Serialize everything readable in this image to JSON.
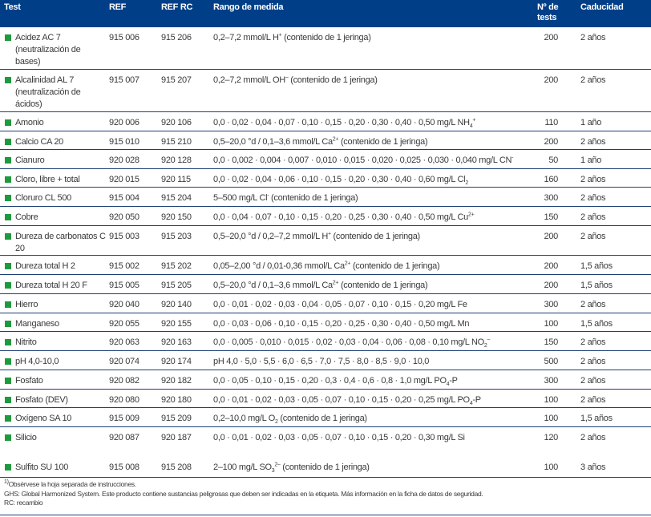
{
  "header": {
    "test": "Test",
    "ref": "REF",
    "ref_rc": "REF RC",
    "range": "Rango de medida",
    "n_tests": "Nº de tests",
    "expiry": "Caducidad"
  },
  "colors": {
    "header_bg": "#003f87",
    "marker": "#1e9a3e"
  },
  "rows": [
    {
      "test": "Acidez AC 7 (neutralización de bases)",
      "ref": "915 006",
      "ref_rc": "915 206",
      "range": [
        {
          "t": "0,2–7,2 mmol/L H"
        },
        {
          "sup": "+"
        },
        {
          "t": " (contenido de 1 jeringa)"
        }
      ],
      "n": "200",
      "exp": "2 años"
    },
    {
      "test": "Alcalinidad AL 7 (neutralización de ácidos)",
      "ref": "915 007",
      "ref_rc": "915 207",
      "range": [
        {
          "t": "0,2–7,2 mmol/L OH"
        },
        {
          "sup": "–"
        },
        {
          "t": " (contenido de 1 jeringa)"
        }
      ],
      "n": "200",
      "exp": "2 años"
    },
    {
      "test": "Amonio",
      "ref": "920 006",
      "ref_rc": "920 106",
      "range": [
        {
          "t": "0,0 · 0,02 · 0,04 · 0,07 · 0,10 · 0,15 · 0,20 · 0,30 · 0,40 · 0,50 mg/L NH"
        },
        {
          "sub": "4"
        },
        {
          "sup": "+"
        }
      ],
      "n": "110",
      "exp": "1 año"
    },
    {
      "test": "Calcio CA 20",
      "ref": "915 010",
      "ref_rc": "915 210",
      "range": [
        {
          "t": "0,5–20,0 °d / 0,1–3,6 mmol/L Ca"
        },
        {
          "sup": "2+"
        },
        {
          "t": " (contenido de 1 jeringa)"
        }
      ],
      "n": "200",
      "exp": "2 años"
    },
    {
      "test": "Cianuro",
      "ref": "920 028",
      "ref_rc": "920 128",
      "range": [
        {
          "t": "0,0 · 0,002 · 0,004 · 0,007 · 0,010 · 0,015 · 0,020 · 0,025 · 0,030 · 0,040 mg/L CN"
        },
        {
          "sup": "-"
        }
      ],
      "n": "50",
      "exp": "1 año"
    },
    {
      "test": "Cloro, libre + total",
      "ref": "920 015",
      "ref_rc": "920 115",
      "range": [
        {
          "t": "0,0 · 0,02 · 0,04 · 0,06 · 0,10 · 0,15 · 0,20 · 0,30 · 0,40 · 0,60 mg/L Cl"
        },
        {
          "sub": "2"
        }
      ],
      "n": "160",
      "exp": "2 años"
    },
    {
      "test": "Cloruro CL 500",
      "ref": "915 004",
      "ref_rc": "915 204",
      "range": [
        {
          "t": "5–500 mg/L Cl"
        },
        {
          "sup": "-"
        },
        {
          "t": " (contenido de 1 jeringa)"
        }
      ],
      "n": "300",
      "exp": "2 años"
    },
    {
      "test": "Cobre",
      "ref": "920 050",
      "ref_rc": "920 150",
      "range": [
        {
          "t": "0,0 · 0,04 · 0,07 · 0,10 · 0,15 · 0,20 · 0,25 · 0,30 · 0,40 · 0,50 mg/L Cu"
        },
        {
          "sup": "2+"
        }
      ],
      "n": "150",
      "exp": "2 años"
    },
    {
      "test": "Dureza de carbonatos C 20",
      "ref": "915 003",
      "ref_rc": "915 203",
      "range": [
        {
          "t": "0,5–20,0 °d / 0,2–7,2 mmol/L H"
        },
        {
          "sup": "+"
        },
        {
          "t": " (contenido de 1 jeringa)"
        }
      ],
      "n": "200",
      "exp": "2 años"
    },
    {
      "test": "Dureza total H 2",
      "ref": "915 002",
      "ref_rc": "915 202",
      "range": [
        {
          "t": "0,05–2,00 °d / 0,01-0,36 mmol/L Ca"
        },
        {
          "sup": "2+"
        },
        {
          "t": " (contenido de 1 jeringa)"
        }
      ],
      "n": "200",
      "exp": "1,5 años"
    },
    {
      "test": "Dureza total H 20 F",
      "ref": "915 005",
      "ref_rc": "915 205",
      "range": [
        {
          "t": "0,5–20,0 °d / 0,1–3,6 mmol/L Ca"
        },
        {
          "sup": "2+"
        },
        {
          "t": " (contenido de 1 jeringa)"
        }
      ],
      "n": "200",
      "exp": "1,5 años"
    },
    {
      "test": "Hierro",
      "ref": "920 040",
      "ref_rc": "920 140",
      "range": [
        {
          "t": "0,0 · 0,01 · 0,02 · 0,03 · 0,04 · 0,05 · 0,07 · 0,10 · 0,15 · 0,20 mg/L Fe"
        }
      ],
      "n": "300",
      "exp": "2 años"
    },
    {
      "test": "Manganeso",
      "ref": "920 055",
      "ref_rc": "920 155",
      "range": [
        {
          "t": "0,0 · 0,03 · 0,06 · 0,10 · 0,15 · 0,20 · 0,25 · 0,30 · 0,40 · 0,50 mg/L Mn"
        }
      ],
      "n": "100",
      "exp": "1,5 años"
    },
    {
      "test": "Nitrito",
      "ref": "920 063",
      "ref_rc": "920 163",
      "range": [
        {
          "t": "0,0 · 0,005 · 0,010 · 0,015 · 0,02 · 0,03 · 0,04 · 0,06 · 0,08 · 0,10 mg/L NO"
        },
        {
          "sub": "2"
        },
        {
          "sup": "–"
        }
      ],
      "n": "150",
      "exp": "2 años"
    },
    {
      "test": "pH 4,0-10,0",
      "ref": "920 074",
      "ref_rc": "920 174",
      "range": [
        {
          "t": "pH 4,0 · 5,0 · 5,5 · 6,0 · 6,5 · 7,0 · 7,5 · 8,0 · 8,5 · 9,0 · 10,0"
        }
      ],
      "n": "500",
      "exp": "2 años"
    },
    {
      "test": "Fosfato",
      "ref": "920 082",
      "ref_rc": "920 182",
      "range": [
        {
          "t": "0,0 · 0,05 · 0,10 · 0,15 · 0,20 · 0,3 · 0,4 · 0,6 · 0,8 · 1,0 mg/L PO"
        },
        {
          "sub": "4"
        },
        {
          "t": "-P"
        }
      ],
      "n": "300",
      "exp": "2 años"
    },
    {
      "test": "Fosfato (DEV)",
      "ref": "920 080",
      "ref_rc": "920 180",
      "range": [
        {
          "t": "0,0 · 0,01 · 0,02 · 0,03 · 0,05 · 0,07 · 0,10 · 0,15 · 0,20 · 0,25 mg/L PO"
        },
        {
          "sub": "4"
        },
        {
          "t": "-P"
        }
      ],
      "n": "100",
      "exp": "2 años"
    },
    {
      "test": "Oxígeno SA 10",
      "ref": "915 009",
      "ref_rc": "915 209",
      "range": [
        {
          "t": "0,2–10,0 mg/L O"
        },
        {
          "sub": "2"
        },
        {
          "t": " (contenido de 1 jeringa)"
        }
      ],
      "n": "100",
      "exp": "1,5 años"
    },
    {
      "test": "Silicio",
      "ref": "920 087",
      "ref_rc": "920 187",
      "range": [
        {
          "t": "0,0 · 0,01 · 0,02 · 0,03 · 0,05 · 0,07 · 0,10 · 0,15 · 0,20 · 0,30 mg/L Si"
        }
      ],
      "n": "120",
      "exp": "2 años"
    },
    {
      "test": "Sulfito SU 100",
      "ref": "915 008",
      "ref_rc": "915 208",
      "range": [
        {
          "t": "2–100 mg/L SO"
        },
        {
          "sub": "3"
        },
        {
          "sup": "2–"
        },
        {
          "t": " (contenido de 1 jeringa)"
        }
      ],
      "n": "100",
      "exp": "3 años"
    }
  ],
  "footer": {
    "note_mark": "1)",
    "note": "Obsérvese la hoja separada de instrucciones.",
    "ghs": "GHS: Global Harmonized System. Este producto contiene sustancias peligrosas que deben ser indicadas en la etiqueta. Más información en la ficha de datos de seguridad.",
    "rc": "RC: recambio"
  }
}
